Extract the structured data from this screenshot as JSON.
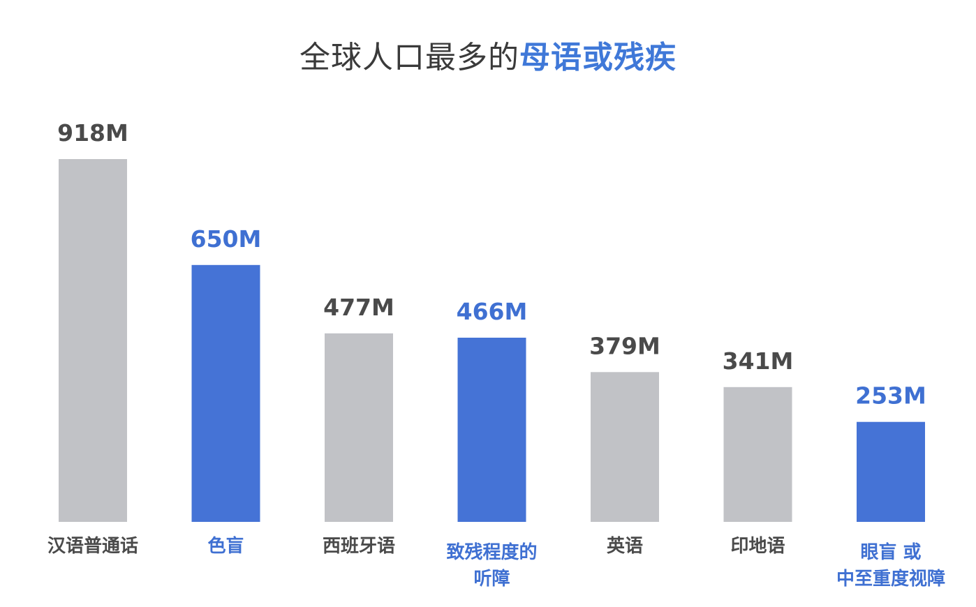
{
  "title": {
    "prefix": "全球人口最多的",
    "highlight": "母语或残疾"
  },
  "colors": {
    "language": "#c1c2c6",
    "disability": "#4573d6",
    "language_label": "#4a4a4a",
    "disability_label": "#3f70d2"
  },
  "chart_data": {
    "type": "bar",
    "title": "全球人口最多的母语或残疾",
    "xlabel": "",
    "ylabel": "",
    "ylim": [
      0,
      918
    ],
    "grid": false,
    "categories": [
      [
        "汉语普通话"
      ],
      [
        "色盲"
      ],
      [
        "西班牙语"
      ],
      [
        "致残程度的",
        "听障"
      ],
      [
        "英语"
      ],
      [
        "印地语"
      ],
      [
        "眼盲 或",
        "中至重度视障"
      ]
    ],
    "values": [
      918,
      650,
      477,
      466,
      379,
      341,
      253
    ],
    "value_labels": [
      "918M",
      "650M",
      "477M",
      "466M",
      "379M",
      "341M",
      "253M"
    ],
    "groups": [
      "language",
      "disability",
      "language",
      "disability",
      "language",
      "language",
      "disability"
    ]
  }
}
